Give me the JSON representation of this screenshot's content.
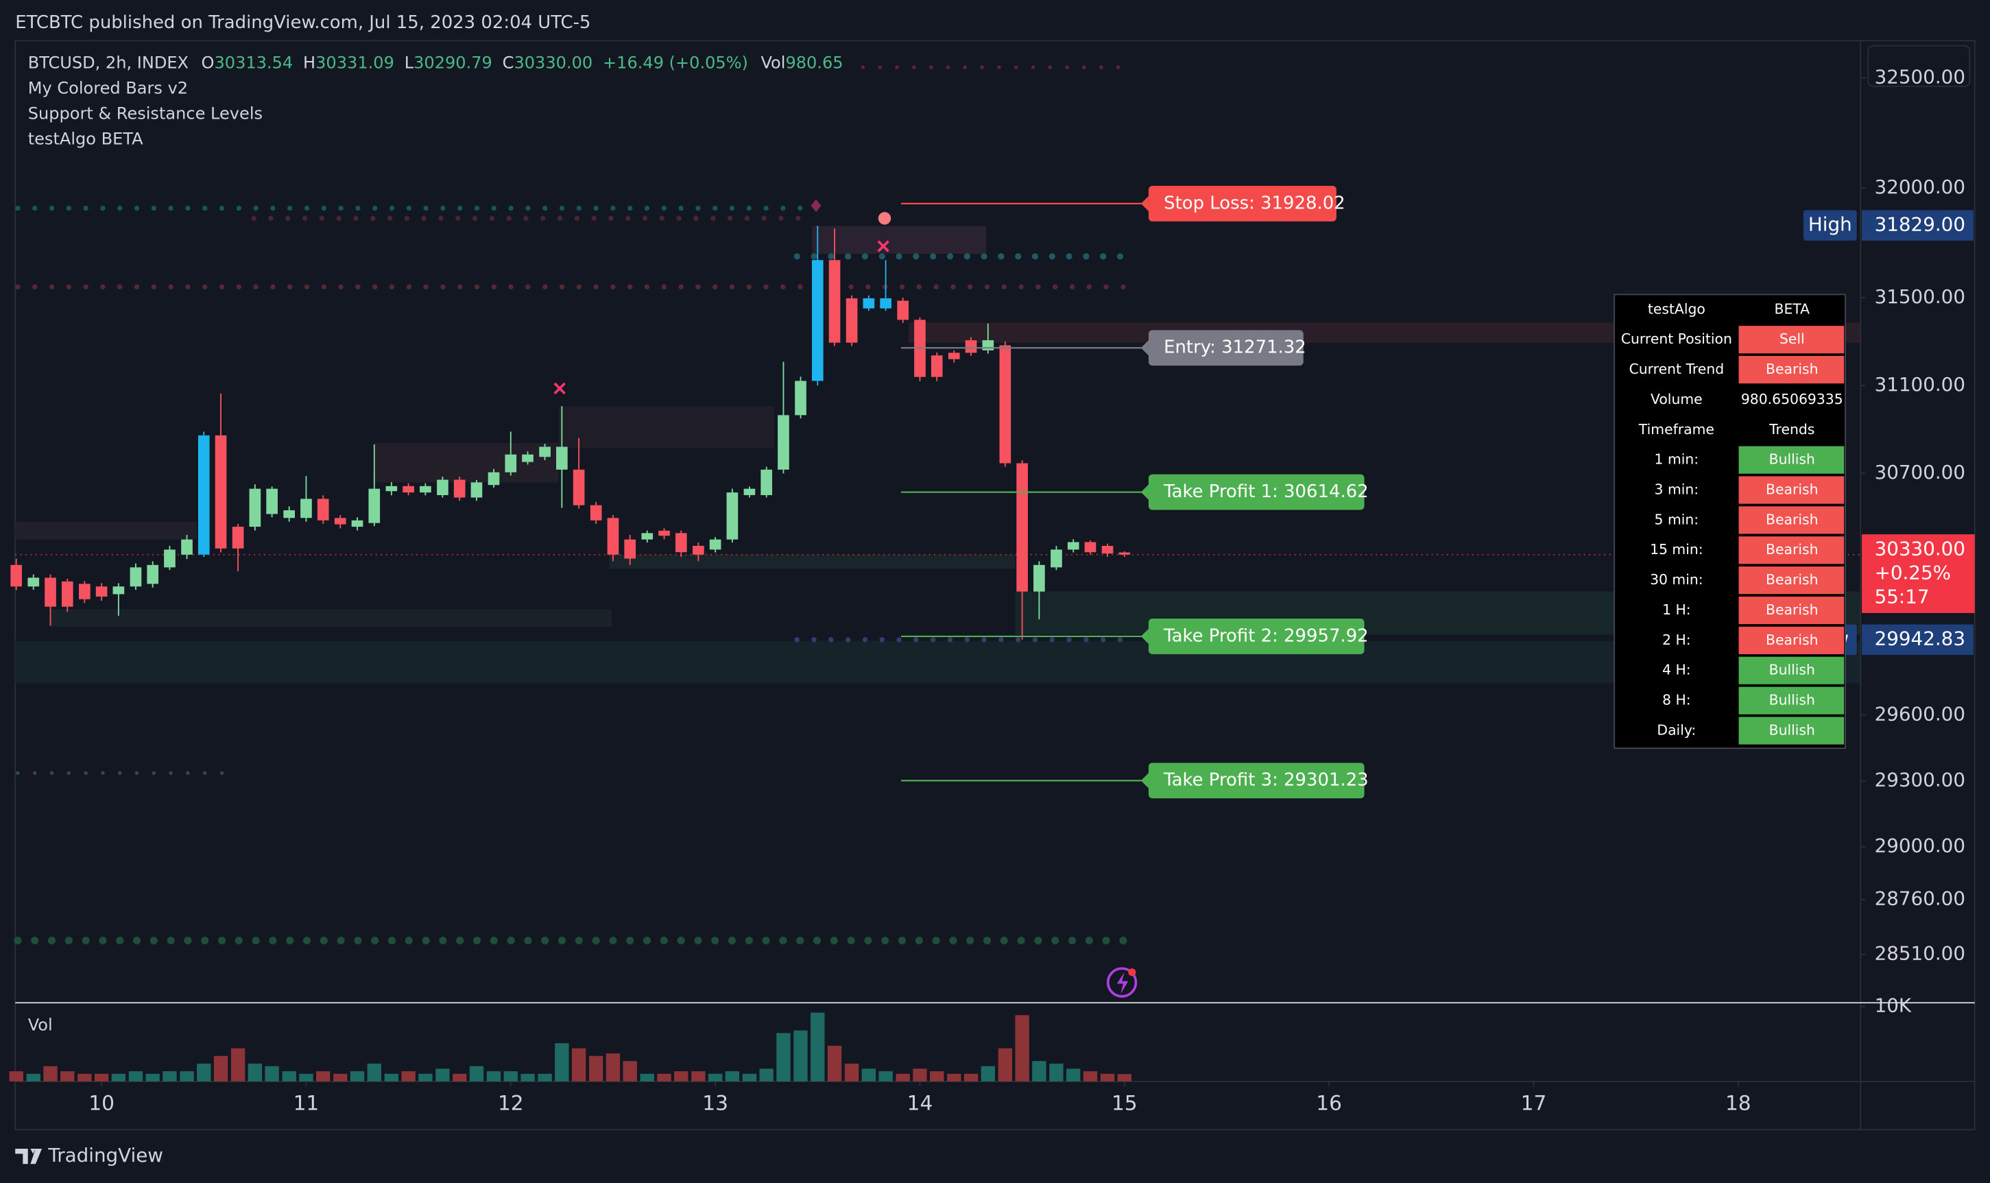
{
  "header": {
    "published": "ETCBTC published on TradingView.com, Jul 15, 2023 02:04 UTC-5",
    "footer": "TradingView"
  },
  "chart_data": {
    "type": "candlestick",
    "symbol": "BTCUSD, 2h, INDEX",
    "ohlc_legend": [
      {
        "label": "O",
        "value": "30313.54"
      },
      {
        "label": "H",
        "value": "30331.09"
      },
      {
        "label": "L",
        "value": "30290.79"
      },
      {
        "label": "C",
        "value": "30330.00"
      }
    ],
    "change": "+16.49 (+0.05%)",
    "volume_legend": {
      "label": "Vol",
      "value": "980.65"
    },
    "indicators": [
      "My Colored Bars v2",
      "Support & Resistance Levels",
      "testAlgo BETA"
    ],
    "x": [
      9.583,
      9.667,
      9.75,
      9.833,
      9.917,
      10,
      10.083,
      10.167,
      10.25,
      10.333,
      10.417,
      10.5,
      10.583,
      10.667,
      10.75,
      10.833,
      10.917,
      11,
      11.083,
      11.167,
      11.25,
      11.333,
      11.417,
      11.5,
      11.583,
      11.667,
      11.75,
      11.833,
      11.917,
      12,
      12.083,
      12.167,
      12.25,
      12.333,
      12.417,
      12.5,
      12.583,
      12.667,
      12.75,
      12.833,
      12.917,
      13,
      13.083,
      13.167,
      13.25,
      13.333,
      13.417,
      13.5,
      13.583,
      13.667,
      13.75,
      13.833,
      13.917,
      14,
      14.083,
      14.167,
      14.25,
      14.333,
      14.417,
      14.5,
      14.583,
      14.667,
      14.75,
      14.833,
      14.917,
      15
    ],
    "candles": [
      [
        30283,
        30312,
        30168,
        30185
      ],
      [
        30185,
        30240,
        30170,
        30225
      ],
      [
        30225,
        30240,
        30006,
        30093
      ],
      [
        30208,
        30220,
        30070,
        30093
      ],
      [
        30197,
        30210,
        30110,
        30127
      ],
      [
        30185,
        30200,
        30120,
        30139
      ],
      [
        30150,
        30200,
        30052,
        30185
      ],
      [
        30185,
        30290,
        30170,
        30272
      ],
      [
        30197,
        30300,
        30180,
        30283
      ],
      [
        30272,
        30370,
        30260,
        30353
      ],
      [
        30330,
        30420,
        30310,
        30399
      ],
      [
        30330,
        30890,
        30320,
        30873
      ],
      [
        30873,
        31064,
        30340,
        30358
      ],
      [
        30457,
        30470,
        30254,
        30358
      ],
      [
        30457,
        30650,
        30440,
        30630
      ],
      [
        30515,
        30640,
        30500,
        30630
      ],
      [
        30497,
        30550,
        30480,
        30532
      ],
      [
        30497,
        30688,
        30480,
        30584
      ],
      [
        30584,
        30600,
        30470,
        30486
      ],
      [
        30497,
        30510,
        30450,
        30468
      ],
      [
        30457,
        30500,
        30440,
        30486
      ],
      [
        30474,
        30832,
        30460,
        30630
      ],
      [
        30619,
        30660,
        30600,
        30642
      ],
      [
        30642,
        30655,
        30600,
        30613
      ],
      [
        30613,
        30655,
        30600,
        30642
      ],
      [
        30601,
        30685,
        30590,
        30671
      ],
      [
        30671,
        30685,
        30575,
        30590
      ],
      [
        30590,
        30670,
        30575,
        30659
      ],
      [
        30647,
        30720,
        30635,
        30705
      ],
      [
        30705,
        30890,
        30690,
        30786
      ],
      [
        30752,
        30800,
        30740,
        30786
      ],
      [
        30775,
        30835,
        30760,
        30821
      ],
      [
        30717,
        31006,
        30543,
        30821
      ],
      [
        30717,
        30861,
        30540,
        30555
      ],
      [
        30555,
        30570,
        30470,
        30486
      ],
      [
        30497,
        30510,
        30300,
        30330
      ],
      [
        30399,
        30420,
        30283,
        30312
      ],
      [
        30399,
        30440,
        30385,
        30428
      ],
      [
        30439,
        30450,
        30400,
        30416
      ],
      [
        30428,
        30440,
        30320,
        30341
      ],
      [
        30370,
        30385,
        30300,
        30330
      ],
      [
        30353,
        30410,
        30340,
        30399
      ],
      [
        30399,
        30630,
        30385,
        30613
      ],
      [
        30601,
        30640,
        30590,
        30630
      ],
      [
        30601,
        30730,
        30590,
        30717
      ],
      [
        30717,
        31208,
        30700,
        30965
      ],
      [
        30965,
        31140,
        30950,
        31121
      ],
      [
        31121,
        31827,
        31100,
        31671
      ],
      [
        31671,
        31815,
        31280,
        31295
      ],
      [
        31497,
        31510,
        31280,
        31295
      ],
      [
        31451,
        31510,
        31440,
        31497
      ],
      [
        31451,
        31671,
        31440,
        31497
      ],
      [
        31486,
        31500,
        31385,
        31399
      ],
      [
        31399,
        31410,
        31120,
        31139
      ],
      [
        31237,
        31250,
        31120,
        31139
      ],
      [
        31249,
        31260,
        31205,
        31220
      ],
      [
        31306,
        31320,
        31235,
        31249
      ],
      [
        31260,
        31382,
        31245,
        31306
      ],
      [
        31283,
        31300,
        30730,
        30746
      ],
      [
        30746,
        30760,
        29943,
        30162
      ],
      [
        30162,
        30300,
        30035,
        30283
      ],
      [
        30272,
        30370,
        30260,
        30353
      ],
      [
        30353,
        30400,
        30340,
        30387
      ],
      [
        30387,
        30395,
        30330,
        30341
      ],
      [
        30370,
        30380,
        30320,
        30335
      ],
      [
        30340,
        30345,
        30320,
        30330
      ]
    ],
    "candle_colors": [
      "#f7525f",
      "#81d89f",
      "#f7525f",
      "#f7525f",
      "#f7525f",
      "#f7525f",
      "#81d89f",
      "#81d89f",
      "#81d89f",
      "#81d89f",
      "#81d89f",
      "#1eb4f0",
      "#f7525f",
      "#f7525f",
      "#81d89f",
      "#81d89f",
      "#81d89f",
      "#81d89f",
      "#f7525f",
      "#f7525f",
      "#81d89f",
      "#81d89f",
      "#81d89f",
      "#f7525f",
      "#81d89f",
      "#81d89f",
      "#f7525f",
      "#81d89f",
      "#81d89f",
      "#81d89f",
      "#81d89f",
      "#81d89f",
      "#81d89f",
      "#f7525f",
      "#f7525f",
      "#f7525f",
      "#f7525f",
      "#81d89f",
      "#f7525f",
      "#f7525f",
      "#f7525f",
      "#81d89f",
      "#81d89f",
      "#81d89f",
      "#81d89f",
      "#81d89f",
      "#81d89f",
      "#1eb4f0",
      "#f7525f",
      "#f7525f",
      "#1eb4f0",
      "#1eb4f0",
      "#f7525f",
      "#f7525f",
      "#f7525f",
      "#f7525f",
      "#f7525f",
      "#81d89f",
      "#f7525f",
      "#f7525f",
      "#81d89f",
      "#81d89f",
      "#81d89f",
      "#f7525f",
      "#f7525f",
      "#f7525f"
    ],
    "xlim": [
      9.578,
      18.598
    ],
    "xticks": [
      10,
      11,
      12,
      13,
      14,
      15,
      16,
      17,
      18
    ],
    "ylim": [
      28290,
      32670
    ],
    "yticks": [
      {
        "value": 32500,
        "label": "32500.00"
      },
      {
        "value": 32000,
        "label": "32000.00"
      },
      {
        "value": 31500,
        "label": "31500.00"
      },
      {
        "value": 31100,
        "label": "31100.00"
      },
      {
        "value": 30700,
        "label": "30700.00"
      },
      {
        "value": 29600,
        "label": "29600.00"
      },
      {
        "value": 29300,
        "label": "29300.00"
      },
      {
        "value": 29000,
        "label": "29000.00"
      },
      {
        "value": 28760,
        "label": "28760.00"
      },
      {
        "value": 28510,
        "label": "28510.00"
      }
    ],
    "levels": [
      {
        "label": "Stop Loss: 31928.02",
        "value": 31928.02,
        "color": "#f44a4a"
      },
      {
        "label": "Entry: 31271.32",
        "value": 31271.32,
        "color": "#787b86"
      },
      {
        "label": "Take Profit 1: 30614.62",
        "value": 30614.62,
        "color": "#4caf50"
      },
      {
        "label": "Take Profit 2: 29957.92",
        "value": 29957.92,
        "color": "#4caf50"
      },
      {
        "label": "Take Profit 3: 29301.23",
        "value": 29301.23,
        "color": "#4caf50"
      }
    ],
    "high": {
      "label": "High",
      "value": 31829,
      "value_label": "31829.00"
    },
    "low": {
      "label": "Low",
      "value": 29942.83,
      "value_label": "29942.83"
    },
    "last": {
      "value": 30330,
      "value_label": "30330.00",
      "change": "+0.25%",
      "countdown": "55:17",
      "color": "#f23645"
    },
    "volume": {
      "title": "Vol",
      "up_color": "#1d6b63",
      "down_color": "#8c3438",
      "ylim": [
        0,
        10500
      ],
      "yticks": [
        {
          "value": 10000,
          "label": "10K"
        }
      ],
      "values": [
        1360,
        1020,
        2040,
        1360,
        1020,
        1020,
        1020,
        1360,
        1020,
        1360,
        1360,
        2380,
        3400,
        4420,
        2380,
        2040,
        1360,
        1020,
        1360,
        1020,
        1360,
        2380,
        1020,
        1360,
        1020,
        1700,
        1020,
        2040,
        1360,
        1360,
        1020,
        1020,
        5100,
        4420,
        3400,
        3740,
        2720,
        1020,
        1020,
        1360,
        1360,
        1020,
        1360,
        1020,
        1700,
        6460,
        6800,
        9180,
        4760,
        2380,
        1700,
        1360,
        1020,
        1700,
        1360,
        1020,
        1020,
        2040,
        4420,
        8840,
        2720,
        2380,
        1700,
        1360,
        1020,
        980.65
      ]
    }
  },
  "table": {
    "header": [
      "testAlgo",
      "BETA"
    ],
    "rows": [
      {
        "label": "Current Position",
        "value": "Sell",
        "color": "#f05350"
      },
      {
        "label": "Current Trend",
        "value": "Bearish",
        "color": "#f05350"
      },
      {
        "label": "Volume",
        "value": "980.65069335"
      },
      {
        "label": "Timeframe",
        "value": "Trends"
      },
      {
        "label": "1 min:",
        "value": "Bullish",
        "color": "#4caf50"
      },
      {
        "label": "3 min:",
        "value": "Bearish",
        "color": "#f05350"
      },
      {
        "label": "5 min:",
        "value": "Bearish",
        "color": "#f05350"
      },
      {
        "label": "15 min:",
        "value": "Bearish",
        "color": "#f05350"
      },
      {
        "label": "30 min:",
        "value": "Bearish",
        "color": "#f05350"
      },
      {
        "label": "1 H:",
        "value": "Bearish",
        "color": "#f05350"
      },
      {
        "label": "2 H:",
        "value": "Bearish",
        "color": "#f05350"
      },
      {
        "label": "4 H:",
        "value": "Bullish",
        "color": "#4caf50"
      },
      {
        "label": "8 H:",
        "value": "Bullish",
        "color": "#4caf50"
      },
      {
        "label": "Daily:",
        "value": "Bullish",
        "color": "#4caf50"
      }
    ]
  }
}
